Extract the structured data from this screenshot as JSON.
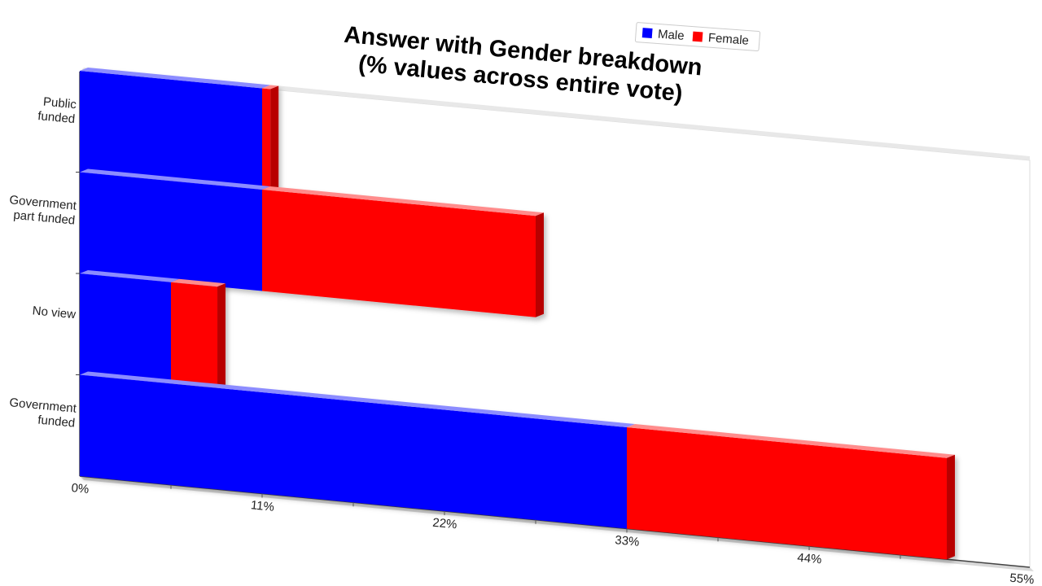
{
  "chart_data": {
    "type": "bar",
    "orientation": "horizontal",
    "stacked": true,
    "title_lines": [
      "Answer with Gender breakdown",
      "(% values across entire vote)"
    ],
    "categories": [
      "Public\nfunded",
      "Government\npart funded",
      "No view",
      "Government\nfunded"
    ],
    "series": [
      {
        "name": "Male",
        "color": "#0000ff",
        "values": [
          11,
          11,
          5.5,
          33
        ]
      },
      {
        "name": "Female",
        "color": "#ff0000",
        "values": [
          0.5,
          16.5,
          2.8,
          19.3
        ]
      }
    ],
    "x_ticks": [
      "0%",
      "11%",
      "22%",
      "33%",
      "44%",
      "55%"
    ],
    "xlim": [
      0,
      55
    ],
    "legend_position": "top-right",
    "grid": false
  }
}
